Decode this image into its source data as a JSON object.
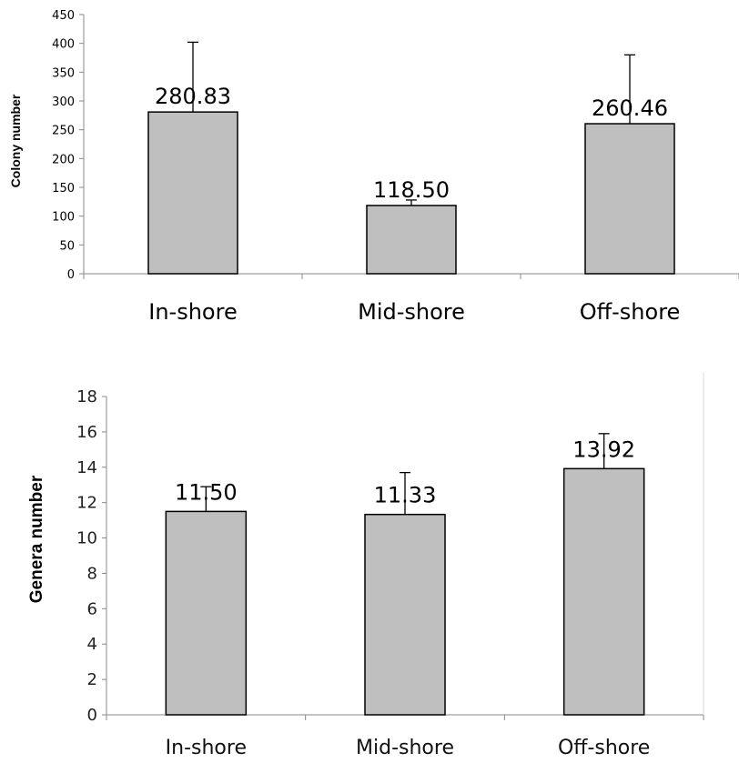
{
  "chart_data": [
    {
      "type": "bar",
      "title": "",
      "xlabel": "",
      "ylabel": "Colony number",
      "categories": [
        "In-shore",
        "Mid-shore",
        "Off-shore"
      ],
      "values": [
        280.83,
        118.5,
        260.46
      ],
      "value_labels": [
        "280.83",
        "118.50",
        "260.46"
      ],
      "error_upper": [
        402,
        128,
        380
      ],
      "ylim": [
        0,
        450
      ],
      "yticks": [
        0,
        50,
        100,
        150,
        200,
        250,
        300,
        350,
        400,
        450
      ],
      "grid": false,
      "legend": "none",
      "bar_color": "#bfbfbf"
    },
    {
      "type": "bar",
      "title": "",
      "xlabel": "",
      "ylabel": "Genera number",
      "categories": [
        "In-shore",
        "Mid-shore",
        "Off-shore"
      ],
      "values": [
        11.5,
        11.33,
        13.92
      ],
      "value_labels": [
        "11.50",
        "11.33",
        "13.92"
      ],
      "error_upper": [
        12.9,
        13.7,
        15.9
      ],
      "ylim": [
        0,
        18
      ],
      "yticks": [
        0,
        2,
        4,
        6,
        8,
        10,
        12,
        14,
        16,
        18
      ],
      "grid": false,
      "legend": "none",
      "bar_color": "#bfbfbf"
    }
  ]
}
